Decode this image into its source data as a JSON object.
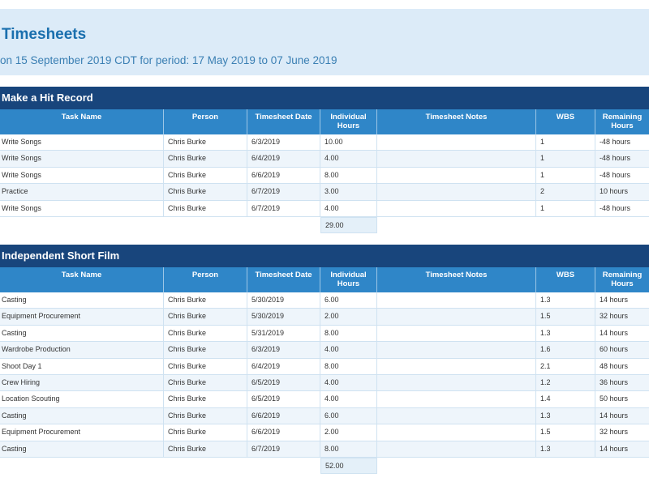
{
  "header": {
    "title": "Timesheets",
    "subtitle": "on 15 September 2019 CDT for period: 17 May 2019 to 07 June 2019"
  },
  "columns": {
    "task": "Task Name",
    "person": "Person",
    "date": "Timesheet Date",
    "hours": "Individual Hours",
    "notes": "Timesheet Notes",
    "wbs": "WBS",
    "remaining": "Remaining Hours"
  },
  "sections": [
    {
      "title": "Make a Hit Record",
      "total": "29.00",
      "rows": [
        {
          "task": "Write Songs",
          "person": "Chris Burke",
          "date": "6/3/2019",
          "hours": "10.00",
          "notes": "",
          "wbs": "1",
          "remaining": "-48 hours"
        },
        {
          "task": "Write Songs",
          "person": "Chris Burke",
          "date": "6/4/2019",
          "hours": "4.00",
          "notes": "",
          "wbs": "1",
          "remaining": "-48 hours"
        },
        {
          "task": "Write Songs",
          "person": "Chris Burke",
          "date": "6/6/2019",
          "hours": "8.00",
          "notes": "",
          "wbs": "1",
          "remaining": "-48 hours"
        },
        {
          "task": "Practice",
          "person": "Chris Burke",
          "date": "6/7/2019",
          "hours": "3.00",
          "notes": "",
          "wbs": "2",
          "remaining": "10 hours"
        },
        {
          "task": "Write Songs",
          "person": "Chris Burke",
          "date": "6/7/2019",
          "hours": "4.00",
          "notes": "",
          "wbs": "1",
          "remaining": "-48 hours"
        }
      ]
    },
    {
      "title": "Independent Short Film",
      "total": "52.00",
      "rows": [
        {
          "task": "Casting",
          "person": "Chris Burke",
          "date": "5/30/2019",
          "hours": "6.00",
          "notes": "",
          "wbs": "1.3",
          "remaining": "14 hours"
        },
        {
          "task": "Equipment Procurement",
          "person": "Chris Burke",
          "date": "5/30/2019",
          "hours": "2.00",
          "notes": "",
          "wbs": "1.5",
          "remaining": "32 hours"
        },
        {
          "task": "Casting",
          "person": "Chris Burke",
          "date": "5/31/2019",
          "hours": "8.00",
          "notes": "",
          "wbs": "1.3",
          "remaining": "14 hours"
        },
        {
          "task": "Wardrobe Production",
          "person": "Chris Burke",
          "date": "6/3/2019",
          "hours": "4.00",
          "notes": "",
          "wbs": "1.6",
          "remaining": "60 hours"
        },
        {
          "task": "Shoot Day 1",
          "person": "Chris Burke",
          "date": "6/4/2019",
          "hours": "8.00",
          "notes": "",
          "wbs": "2.1",
          "remaining": "48 hours"
        },
        {
          "task": "Crew Hiring",
          "person": "Chris Burke",
          "date": "6/5/2019",
          "hours": "4.00",
          "notes": "",
          "wbs": "1.2",
          "remaining": "36 hours"
        },
        {
          "task": "Location Scouting",
          "person": "Chris Burke",
          "date": "6/5/2019",
          "hours": "4.00",
          "notes": "",
          "wbs": "1.4",
          "remaining": "50 hours"
        },
        {
          "task": "Casting",
          "person": "Chris Burke",
          "date": "6/6/2019",
          "hours": "6.00",
          "notes": "",
          "wbs": "1.3",
          "remaining": "14 hours"
        },
        {
          "task": "Equipment Procurement",
          "person": "Chris Burke",
          "date": "6/6/2019",
          "hours": "2.00",
          "notes": "",
          "wbs": "1.5",
          "remaining": "32 hours"
        },
        {
          "task": "Casting",
          "person": "Chris Burke",
          "date": "6/7/2019",
          "hours": "8.00",
          "notes": "",
          "wbs": "1.3",
          "remaining": "14 hours"
        }
      ]
    }
  ]
}
